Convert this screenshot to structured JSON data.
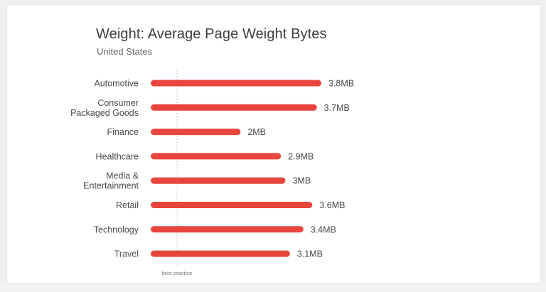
{
  "chart_data": {
    "type": "bar",
    "orientation": "horizontal",
    "title": "Weight: Average Page Weight Bytes",
    "subtitle": "United States",
    "categories": [
      [
        "Automotive"
      ],
      [
        "Consumer",
        "Packaged Goods"
      ],
      [
        "Finance"
      ],
      [
        "Healthcare"
      ],
      [
        "Media &",
        "Entertainment"
      ],
      [
        "Retail"
      ],
      [
        "Technology"
      ],
      [
        "Travel"
      ]
    ],
    "values": [
      3.8,
      3.7,
      2.0,
      2.9,
      3.0,
      3.6,
      3.4,
      3.1
    ],
    "value_labels": [
      "3.8MB",
      "3.7MB",
      "2MB",
      "2.9MB",
      "3MB",
      "3.6MB",
      "3.4MB",
      "3.1MB"
    ],
    "unit": "MB",
    "xlim": [
      0,
      3.8
    ],
    "reference_line": {
      "label": "best practice"
    },
    "grid": false,
    "legend": "none",
    "bar_color": "#e8453c",
    "reference_line_color": "#cfcfcf",
    "label_color": "#4a4a4a"
  }
}
